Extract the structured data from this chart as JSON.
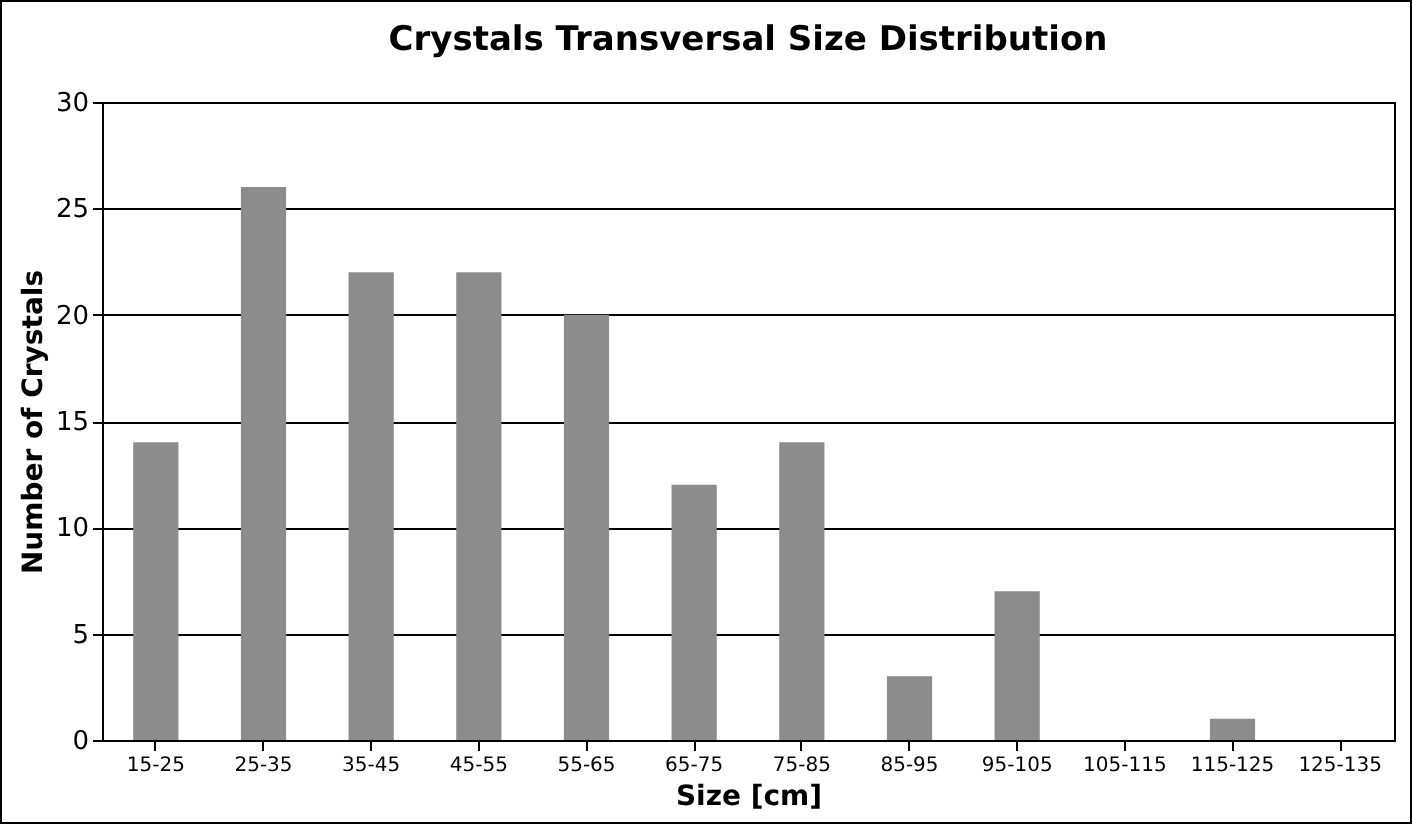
{
  "chart_data": {
    "type": "bar",
    "title": "Crystals Transversal Size Distribution",
    "xlabel": "Size [cm]",
    "ylabel": "Number of Crystals",
    "categories": [
      "15-25",
      "25-35",
      "35-45",
      "45-55",
      "55-65",
      "65-75",
      "75-85",
      "85-95",
      "95-105",
      "105-115",
      "115-125",
      "125-135"
    ],
    "values": [
      14,
      26,
      22,
      22,
      20,
      12,
      14,
      3,
      7,
      0,
      1,
      0
    ],
    "color": "#8c8c8c",
    "ylim": [
      0,
      30
    ],
    "yticks": [
      0,
      5,
      10,
      15,
      20,
      25,
      30
    ],
    "grid": "y"
  }
}
